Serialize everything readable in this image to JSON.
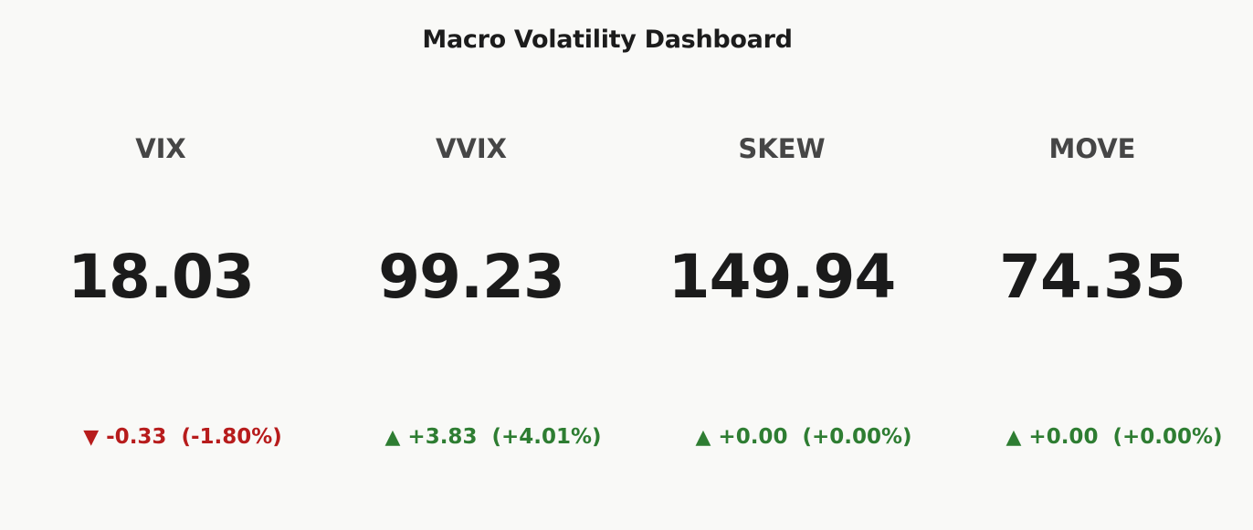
{
  "header": {
    "title": "Macro Volatility Dashboard"
  },
  "colors": {
    "background": "#f9f9f7",
    "up": "#2e7d32",
    "down": "#b71c1c",
    "label": "#464646",
    "value": "#1b1b1b"
  },
  "indices": [
    {
      "label": "VIX",
      "value": "18.03",
      "arrow": "▼",
      "direction": "down",
      "change": "-0.33",
      "change_pct": "(-1.80%)"
    },
    {
      "label": "VVIX",
      "value": "99.23",
      "arrow": "▲",
      "direction": "up",
      "change": "+3.83",
      "change_pct": "(+4.01%)"
    },
    {
      "label": "SKEW",
      "value": "149.94",
      "arrow": "▲",
      "direction": "up",
      "change": "+0.00",
      "change_pct": "(+0.00%)"
    },
    {
      "label": "MOVE",
      "value": "74.35",
      "arrow": "▲",
      "direction": "up",
      "change": "+0.00",
      "change_pct": "(+0.00%)"
    }
  ]
}
